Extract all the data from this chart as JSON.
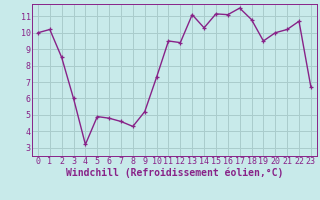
{
  "x": [
    0,
    1,
    2,
    3,
    4,
    5,
    6,
    7,
    8,
    9,
    10,
    11,
    12,
    13,
    14,
    15,
    16,
    17,
    18,
    19,
    20,
    21,
    22,
    23
  ],
  "y": [
    10,
    10.2,
    8.5,
    6.0,
    3.2,
    4.9,
    4.8,
    4.6,
    4.3,
    5.2,
    7.3,
    9.5,
    9.4,
    11.1,
    10.3,
    11.15,
    11.1,
    11.5,
    10.8,
    9.5,
    10.0,
    10.2,
    10.7,
    6.7
  ],
  "line_color": "#882288",
  "bg_color": "#c8eaea",
  "grid_color": "#aacccc",
  "xlabel": "Windchill (Refroidissement éolien,°C)",
  "xlim": [
    -0.5,
    23.5
  ],
  "ylim": [
    2.5,
    11.75
  ],
  "yticks": [
    3,
    4,
    5,
    6,
    7,
    8,
    9,
    10,
    11
  ],
  "xticks": [
    0,
    1,
    2,
    3,
    4,
    5,
    6,
    7,
    8,
    9,
    10,
    11,
    12,
    13,
    14,
    15,
    16,
    17,
    18,
    19,
    20,
    21,
    22,
    23
  ],
  "tick_fontsize": 6,
  "xlabel_fontsize": 7,
  "line_width": 1.0,
  "marker_size": 3.5
}
